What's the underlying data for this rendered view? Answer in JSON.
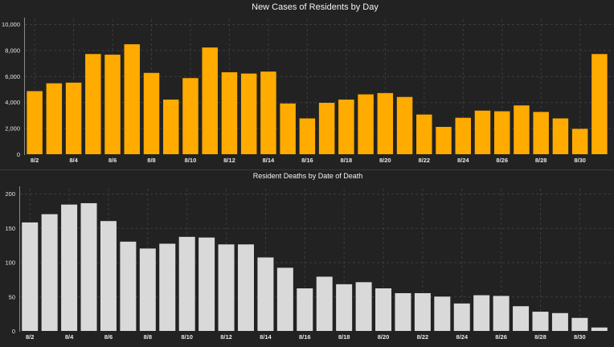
{
  "chart_data": [
    {
      "type": "bar",
      "title": "New Cases of Residents by Day",
      "color": "#ffab00",
      "ylim": [
        0,
        10000
      ],
      "yticks": [
        "0",
        "2,000",
        "4,000",
        "6,000",
        "8,000",
        "10,000"
      ],
      "ytick_values": [
        0,
        2000,
        4000,
        6000,
        8000,
        10000
      ],
      "x_tick_labels": [
        "8/2",
        "8/4",
        "8/6",
        "8/8",
        "8/10",
        "8/12",
        "8/14",
        "8/16",
        "8/18",
        "8/20",
        "8/22",
        "8/24",
        "8/26",
        "8/28",
        "8/30"
      ],
      "categories": [
        "8/2",
        "8/3",
        "8/4",
        "8/5",
        "8/6",
        "8/7",
        "8/8",
        "8/9",
        "8/10",
        "8/11",
        "8/12",
        "8/13",
        "8/14",
        "8/15",
        "8/16",
        "8/17",
        "8/18",
        "8/19",
        "8/20",
        "8/21",
        "8/22",
        "8/23",
        "8/24",
        "8/25",
        "8/26",
        "8/27",
        "8/28",
        "8/29",
        "8/30",
        "8/31"
      ],
      "values": [
        4850,
        5450,
        5500,
        7700,
        7650,
        8450,
        6250,
        4200,
        5850,
        8200,
        6300,
        6200,
        6350,
        3900,
        2750,
        3950,
        4200,
        4600,
        4700,
        4400,
        3050,
        2100,
        2800,
        3350,
        3300,
        3750,
        3250,
        2750,
        1950,
        7700
      ],
      "grid": true
    },
    {
      "type": "bar",
      "title": "Resident Deaths by Date of Death",
      "color": "#d9d9d9",
      "ylim": [
        0,
        200
      ],
      "yticks": [
        "0",
        "50",
        "100",
        "150",
        "200"
      ],
      "ytick_values": [
        0,
        50,
        100,
        150,
        200
      ],
      "x_tick_labels": [
        "8/2",
        "8/4",
        "8/6",
        "8/8",
        "8/10",
        "8/12",
        "8/14",
        "8/16",
        "8/18",
        "8/20",
        "8/22",
        "8/24",
        "8/26",
        "8/28",
        "8/30"
      ],
      "categories": [
        "8/2",
        "8/3",
        "8/4",
        "8/5",
        "8/6",
        "8/7",
        "8/8",
        "8/9",
        "8/10",
        "8/11",
        "8/12",
        "8/13",
        "8/14",
        "8/15",
        "8/16",
        "8/17",
        "8/18",
        "8/19",
        "8/20",
        "8/21",
        "8/22",
        "8/23",
        "8/24",
        "8/25",
        "8/26",
        "8/27",
        "8/28",
        "8/29",
        "8/30",
        "8/31"
      ],
      "values": [
        158,
        170,
        184,
        186,
        160,
        130,
        120,
        127,
        137,
        136,
        126,
        126,
        107,
        92,
        62,
        79,
        68,
        71,
        62,
        55,
        55,
        50,
        40,
        52,
        51,
        36,
        28,
        26,
        19,
        5
      ],
      "grid": true
    }
  ]
}
